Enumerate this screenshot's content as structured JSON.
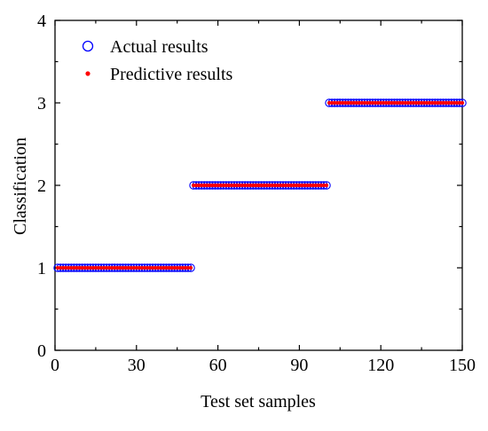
{
  "chart_data": {
    "type": "scatter",
    "xlabel": "Test set samples",
    "ylabel": "Classification",
    "xlim": [
      0,
      150
    ],
    "ylim": [
      0,
      4
    ],
    "x_ticks": [
      "0",
      "30",
      "60",
      "90",
      "120",
      "150"
    ],
    "y_ticks": [
      "0",
      "1",
      "2",
      "3",
      "4"
    ],
    "grid": false,
    "legend_position": "top-left",
    "series": [
      {
        "name": "Actual results",
        "marker": "open-circle",
        "color": "#0000ff",
        "segments": [
          {
            "x_start": 1,
            "x_end": 50,
            "y": 1
          },
          {
            "x_start": 51,
            "x_end": 100,
            "y": 2
          },
          {
            "x_start": 101,
            "x_end": 150,
            "y": 3
          }
        ]
      },
      {
        "name": "Predictive results",
        "marker": "filled-dot",
        "color": "#ff0000",
        "segments": [
          {
            "x_start": 1,
            "x_end": 50,
            "y": 1
          },
          {
            "x_start": 51,
            "x_end": 100,
            "y": 2
          },
          {
            "x_start": 101,
            "x_end": 150,
            "y": 3
          }
        ]
      }
    ]
  }
}
